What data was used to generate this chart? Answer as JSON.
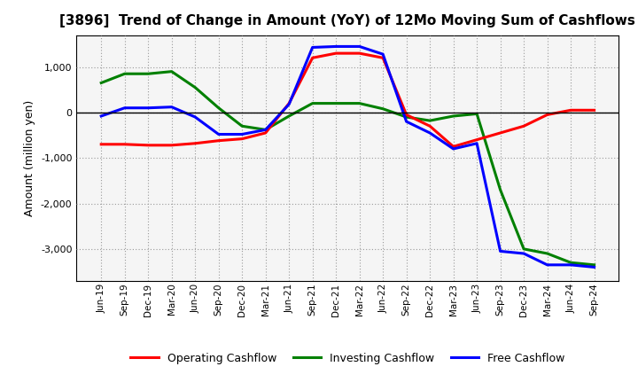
{
  "title": "[3896]  Trend of Change in Amount (YoY) of 12Mo Moving Sum of Cashflows",
  "ylabel": "Amount (million yen)",
  "background_color": "#ffffff",
  "plot_bg_color": "#f5f5f5",
  "grid_color": "#999999",
  "x_labels": [
    "Jun-19",
    "Sep-19",
    "Dec-19",
    "Mar-20",
    "Jun-20",
    "Sep-20",
    "Dec-20",
    "Mar-21",
    "Jun-21",
    "Sep-21",
    "Dec-21",
    "Mar-22",
    "Jun-22",
    "Sep-22",
    "Dec-22",
    "Mar-23",
    "Jun-23",
    "Sep-23",
    "Dec-23",
    "Mar-24",
    "Jun-24",
    "Sep-24"
  ],
  "operating": [
    -700,
    -700,
    -720,
    -720,
    -680,
    -620,
    -580,
    -450,
    200,
    1200,
    1300,
    1300,
    1200,
    -50,
    -300,
    -750,
    -600,
    -450,
    -300,
    -50,
    50,
    50
  ],
  "investing": [
    650,
    850,
    850,
    900,
    550,
    100,
    -300,
    -380,
    -80,
    200,
    200,
    200,
    80,
    -100,
    -180,
    -80,
    -30,
    -1700,
    -3000,
    -3100,
    -3300,
    -3350
  ],
  "free": [
    -80,
    100,
    100,
    120,
    -100,
    -480,
    -480,
    -380,
    180,
    1430,
    1450,
    1450,
    1280,
    -200,
    -450,
    -800,
    -680,
    -3050,
    -3100,
    -3350,
    -3350,
    -3400
  ],
  "ylim": [
    -3700,
    1700
  ],
  "yticks": [
    -3000,
    -2000,
    -1000,
    0,
    1000
  ],
  "line_colors": {
    "operating": "#ff0000",
    "investing": "#008000",
    "free": "#0000ff"
  },
  "line_width": 2.2,
  "legend_labels": [
    "Operating Cashflow",
    "Investing Cashflow",
    "Free Cashflow"
  ],
  "figsize": [
    7.2,
    4.4
  ],
  "dpi": 100,
  "title_fontsize": 11,
  "ylabel_fontsize": 9,
  "tick_fontsize": 8,
  "xtick_fontsize": 7.5,
  "legend_fontsize": 9
}
